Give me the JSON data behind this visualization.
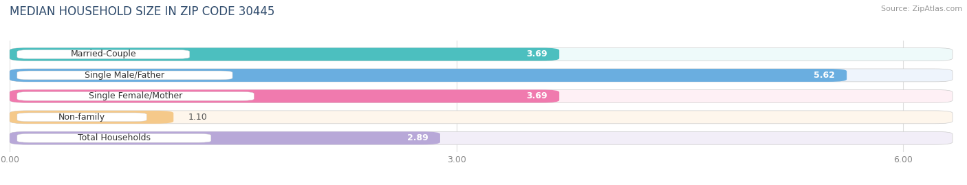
{
  "title": "MEDIAN HOUSEHOLD SIZE IN ZIP CODE 30445",
  "source": "Source: ZipAtlas.com",
  "categories": [
    "Married-Couple",
    "Single Male/Father",
    "Single Female/Mother",
    "Non-family",
    "Total Households"
  ],
  "values": [
    3.69,
    5.62,
    3.69,
    1.1,
    2.89
  ],
  "bar_colors": [
    "#4CBFBF",
    "#6AAEE0",
    "#F07AAE",
    "#F5C98A",
    "#B8A8D8"
  ],
  "bg_colors": [
    "#EEFAFA",
    "#EEF4FC",
    "#FEF0F5",
    "#FEF6EC",
    "#F2EEF8"
  ],
  "xlim": [
    0,
    6.33
  ],
  "xticks": [
    0.0,
    3.0,
    6.0
  ],
  "xtick_labels": [
    "0.00",
    "3.00",
    "6.00"
  ],
  "title_fontsize": 12,
  "label_fontsize": 9,
  "value_fontsize": 9,
  "bar_height": 0.62,
  "title_color": "#2E4A6B",
  "source_color": "#999999",
  "value_inside_threshold": 2.5
}
